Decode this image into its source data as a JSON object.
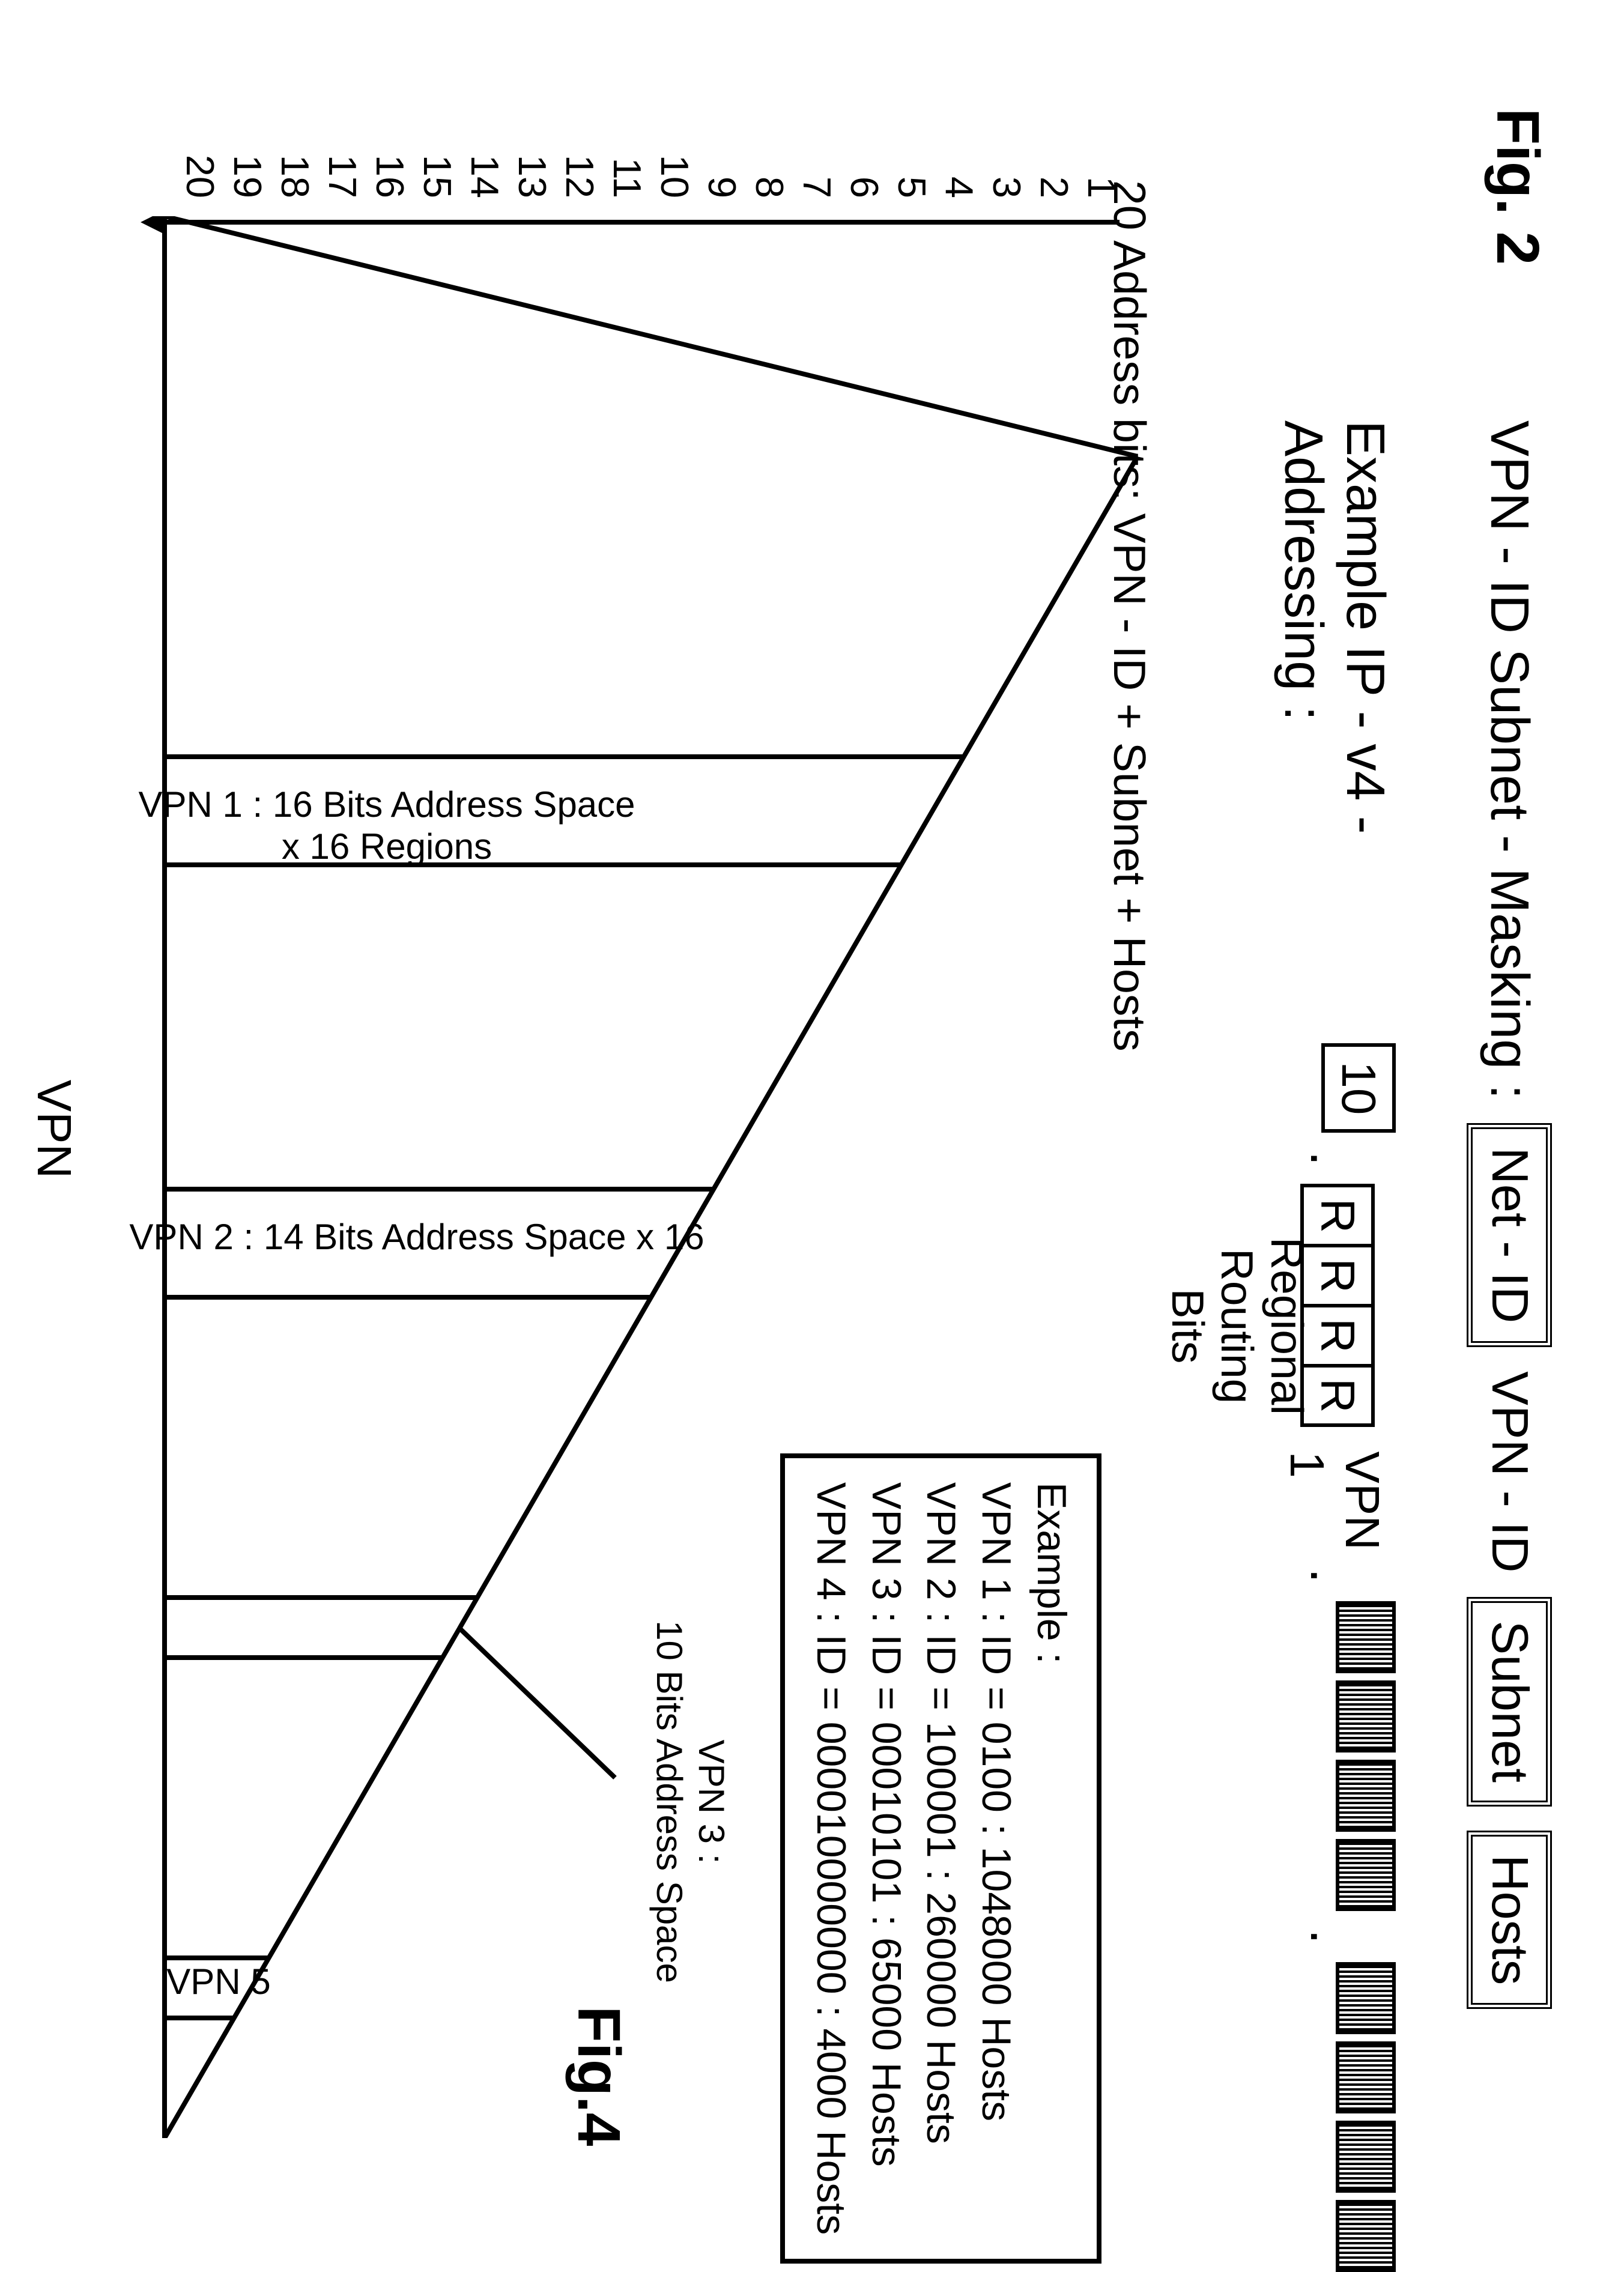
{
  "fig2": "Fig. 2",
  "fig4": "Fig.4",
  "title": {
    "prefix": "VPN - ID  Subnet - Masking :",
    "box_netid": "Net - ID",
    "label_vpnid": "VPN - ID",
    "box_subnet": "Subnet",
    "box_hosts": "Hosts"
  },
  "example": {
    "label": "Example  IP - v4 - Addressing :",
    "byte1": "10",
    "r": "R",
    "vpn1": "VPN 1",
    "regional": "Regional\nRouting\nBits"
  },
  "chart": {
    "y_title": "20 Address bits:  VPN - ID + Subnet + Hosts",
    "y_ticks": [
      "1",
      "2",
      "3",
      "4",
      "5",
      "6",
      "7",
      "8",
      "9",
      "10",
      "11",
      "12",
      "13",
      "14",
      "15",
      "16",
      "17",
      "18",
      "19",
      "20"
    ],
    "x_label": "VPN",
    "vpn1_label": "VPN 1 : 16 Bits Address Space\nx 16 Regions",
    "vpn2_label": "VPN 2 : 14 Bits Address Space x 16",
    "vpn3_label": "VPN 3 :\n10 Bits  Address Space",
    "vpn5_label": "VPN 5",
    "apex_x": 400,
    "base_left_x": 0,
    "base_right_x": 3200,
    "base_y": 1620,
    "apex_y": 0,
    "vlines": [
      900,
      1080,
      1620,
      1800,
      2300,
      2400,
      2900,
      3000
    ],
    "leader_line": {
      "x1": 2350,
      "y1": 1130,
      "x2": 2600,
      "y2": 870
    },
    "stroke": "#000000",
    "stroke_width": 8
  },
  "example_box": {
    "header": "Example :",
    "lines": [
      "VPN 1 : ID = 0100 : 1048000 Hosts",
      "VPN 2 : ID = 100001 : 260000 Hosts",
      "VPN 3 : ID = 00010101 : 65000 Hosts",
      "VPN 4 : ID = 000010000000 : 4000 Hosts"
    ]
  }
}
